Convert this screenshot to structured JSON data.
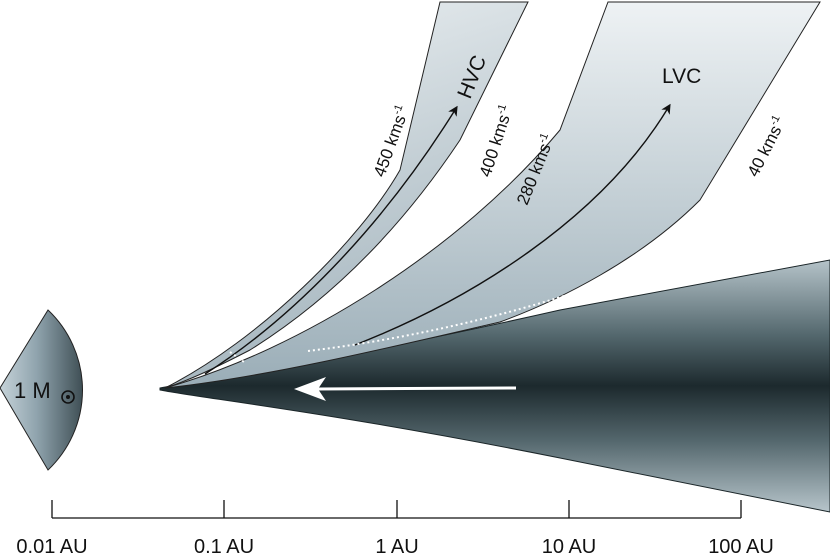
{
  "star": {
    "label": "1 M",
    "symbol": "sun-symbol"
  },
  "components": {
    "hvc": "HVC",
    "lvc": "LVC"
  },
  "velocities": {
    "v450": "450 kms",
    "v400": "400 kms",
    "v280": "280 kms",
    "v40": "40 kms",
    "exponent": "-1"
  },
  "axis": {
    "ticks": [
      "0.01 AU",
      "0.1 AU",
      "1 AU",
      "10 AU",
      "100 AU"
    ]
  },
  "colors": {
    "jet_fill_top": "#e9eef1",
    "jet_fill_bottom": "#9fb1bb",
    "disk_dark": "#1f2e32",
    "disk_light": "#a9b8bf",
    "star_light": "#b4c4cc",
    "star_dark": "#4d5d63"
  }
}
